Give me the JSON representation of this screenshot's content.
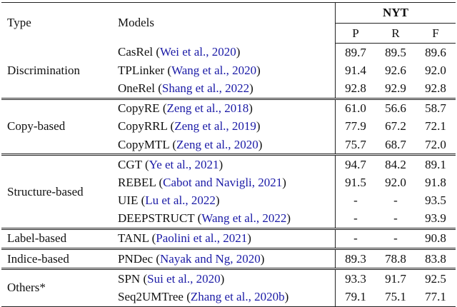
{
  "header": {
    "type": "Type",
    "models": "Models",
    "dataset": "NYT",
    "metrics": [
      "P",
      "R",
      "F"
    ]
  },
  "groups": [
    {
      "type": "Discrimination",
      "rows": [
        {
          "model": "CasRel",
          "cite": "(Wei et al., 2020)",
          "values": [
            "89.7",
            "89.5",
            "89.6"
          ]
        },
        {
          "model": "TPLinker",
          "cite": "(Wang et al., 2020)",
          "values": [
            "91.4",
            "92.6",
            "92.0"
          ]
        },
        {
          "model": "OneRel",
          "cite": "(Shang et al., 2022)",
          "values": [
            "92.8",
            "92.9",
            "92.8"
          ]
        }
      ]
    },
    {
      "type": "Copy-based",
      "rows": [
        {
          "model": "CopyRE",
          "cite": "(Zeng et al., 2018)",
          "values": [
            "61.0",
            "56.6",
            "58.7"
          ]
        },
        {
          "model": "CopyRRL",
          "cite": "(Zeng et al., 2019)",
          "values": [
            "77.9",
            "67.2",
            "72.1"
          ]
        },
        {
          "model": "CopyMTL",
          "cite": "(Zeng et al., 2020)",
          "values": [
            "75.7",
            "68.7",
            "72.0"
          ]
        }
      ]
    },
    {
      "type": "Structure-based",
      "rows": [
        {
          "model": "CGT",
          "cite": "(Ye et al., 2021)",
          "values": [
            "94.7",
            "84.2",
            "89.1"
          ]
        },
        {
          "model": "REBEL",
          "cite": "(Cabot and Navigli, 2021)",
          "values": [
            "91.5",
            "92.0",
            "91.8"
          ]
        },
        {
          "model": "UIE",
          "cite": "(Lu et al., 2022)",
          "values": [
            "-",
            "-",
            "93.5"
          ]
        },
        {
          "model": "DEEPSTRUCT",
          "cite": "(Wang et al., 2022)",
          "values": [
            "-",
            "-",
            "93.9"
          ]
        }
      ]
    },
    {
      "type": "Label-based",
      "rows": [
        {
          "model": "TANL",
          "cite": "(Paolini et al., 2021)",
          "values": [
            "-",
            "-",
            "90.8"
          ]
        }
      ]
    },
    {
      "type": "Indice-based",
      "rows": [
        {
          "model": "PNDec",
          "cite": "(Nayak and Ng, 2020)",
          "values": [
            "89.3",
            "78.8",
            "83.8"
          ]
        }
      ]
    },
    {
      "type": "Others*",
      "rows": [
        {
          "model": "SPN",
          "cite": "(Sui et al., 2020)",
          "values": [
            "93.3",
            "91.7",
            "92.5"
          ]
        },
        {
          "model": "Seq2UMTree",
          "cite": "(Zhang et al., 2020b)",
          "values": [
            "79.1",
            "75.1",
            "77.1"
          ]
        }
      ]
    }
  ]
}
